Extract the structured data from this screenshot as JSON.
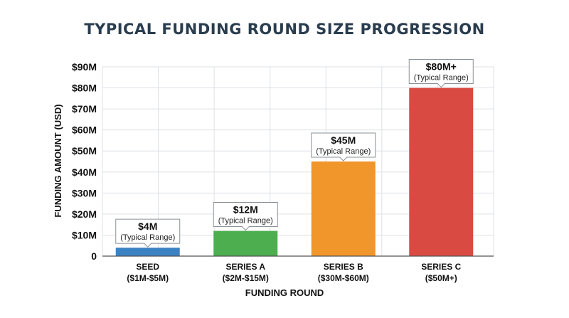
{
  "chart_data": {
    "type": "bar",
    "title": "TYPICAL FUNDING ROUND SIZE PROGRESSION",
    "xlabel": "FUNDING ROUND",
    "ylabel": "FUNDING AMOUNT (USD)",
    "ylim": [
      0,
      90
    ],
    "yticks": [
      0,
      10,
      20,
      30,
      40,
      50,
      60,
      70,
      80,
      90
    ],
    "ytick_labels": [
      "0",
      "$10M",
      "$20M",
      "$30M",
      "$40M",
      "$50M",
      "$60M",
      "$70M",
      "$80M",
      "$90M"
    ],
    "grid": true,
    "categories": [
      {
        "line1": "SEED",
        "line2": "($1M-$5M)"
      },
      {
        "line1": "SERIES A",
        "line2": "($2M-$15M)"
      },
      {
        "line1": "SERIES B",
        "line2": "($30M-$60M)"
      },
      {
        "line1": "SERIES C",
        "line2": "($50M+)"
      }
    ],
    "values": [
      4,
      12,
      45,
      80
    ],
    "value_labels": [
      "$4M",
      "$12M",
      "$45M",
      "$80M+"
    ],
    "value_note": "(Typical Range)",
    "colors": [
      "#3b82c4",
      "#4cae4f",
      "#f0962b",
      "#d94a43"
    ]
  }
}
